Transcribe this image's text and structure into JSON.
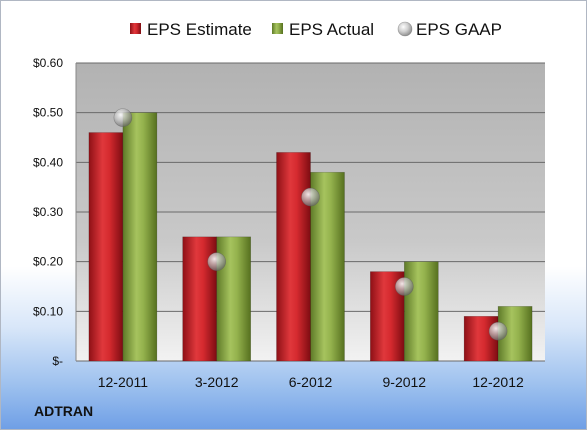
{
  "company": "ADTRAN",
  "chart_data": {
    "type": "bar",
    "categories": [
      "12-2011",
      "3-2012",
      "6-2012",
      "9-2012",
      "12-2012"
    ],
    "series": [
      {
        "name": "EPS Estimate",
        "kind": "bar",
        "color": "#c8242a",
        "values": [
          0.46,
          0.25,
          0.42,
          0.18,
          0.09
        ]
      },
      {
        "name": "EPS Actual",
        "kind": "bar",
        "color": "#7f9c3c",
        "values": [
          0.5,
          0.25,
          0.38,
          0.2,
          0.11
        ]
      },
      {
        "name": "EPS GAAP",
        "kind": "marker",
        "color": "#a9a9a9",
        "values": [
          0.49,
          0.2,
          0.33,
          0.15,
          0.06
        ]
      }
    ],
    "yticks": [
      {
        "value": 0.0,
        "label": "$-"
      },
      {
        "value": 0.1,
        "label": "$0.10"
      },
      {
        "value": 0.2,
        "label": "$0.20"
      },
      {
        "value": 0.3,
        "label": "$0.30"
      },
      {
        "value": 0.4,
        "label": "$0.40"
      },
      {
        "value": 0.5,
        "label": "$0.50"
      },
      {
        "value": 0.6,
        "label": "$0.60"
      }
    ],
    "ylim": [
      0,
      0.6
    ],
    "grid": true,
    "legend": "top"
  }
}
